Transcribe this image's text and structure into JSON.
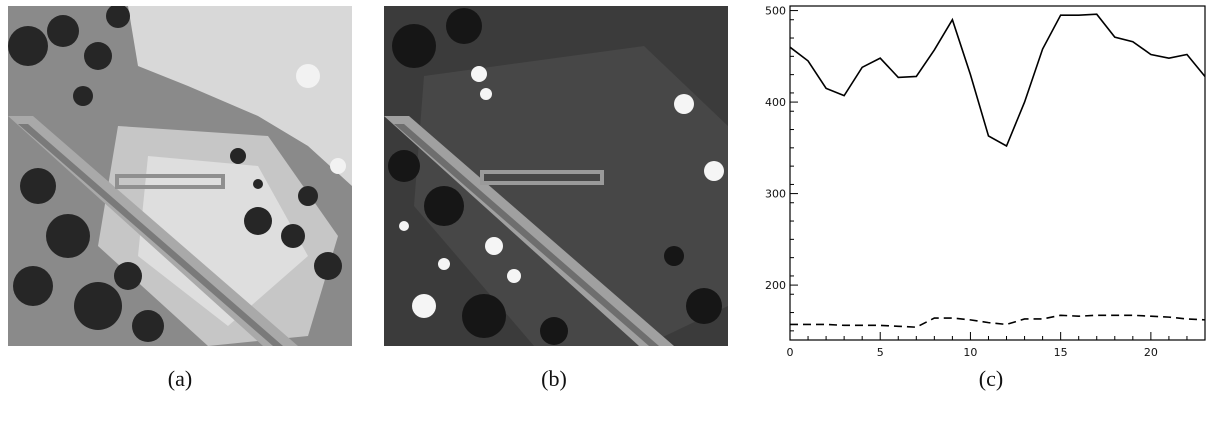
{
  "figure": {
    "panels": [
      {
        "id": "a",
        "caption": "(a)"
      },
      {
        "id": "b",
        "caption": "(b)"
      },
      {
        "id": "c",
        "caption": "(c)"
      }
    ]
  },
  "colors": {
    "image_a_base": "#8e8e8e",
    "image_b_base": "#3a3a3a",
    "roi_box": "#9a9a9a",
    "line": "#000000"
  },
  "chart_data": {
    "type": "line",
    "x": [
      0,
      1,
      2,
      3,
      4,
      5,
      6,
      7,
      8,
      9,
      10,
      11,
      12,
      13,
      14,
      15,
      16,
      17,
      18,
      19,
      20,
      21,
      22,
      23
    ],
    "series": [
      {
        "style": "solid",
        "values": [
          460,
          445,
          415,
          407,
          438,
          448,
          427,
          428,
          457,
          490,
          430,
          363,
          352,
          400,
          458,
          495,
          495,
          496,
          471,
          466,
          452,
          448,
          452,
          428
        ]
      },
      {
        "style": "dashed",
        "values": [
          157,
          157,
          157,
          156,
          156,
          156,
          155,
          154,
          164,
          164,
          162,
          159,
          157,
          163,
          163,
          167,
          166,
          167,
          167,
          167,
          166,
          165,
          163,
          162
        ]
      }
    ],
    "xlim": [
      0,
      23
    ],
    "ylim": [
      140,
      505
    ],
    "x_ticks": [
      0,
      5,
      10,
      15,
      20
    ],
    "y_ticks": [
      200,
      300,
      400,
      500
    ],
    "title": "",
    "xlabel": "",
    "ylabel": ""
  }
}
